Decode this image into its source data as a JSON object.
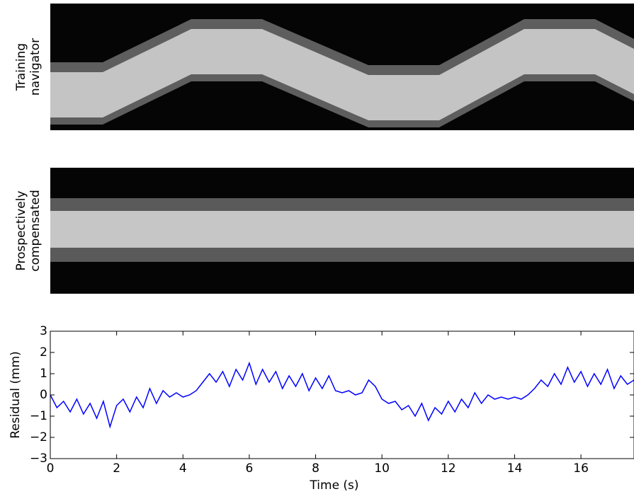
{
  "chart_data": [
    {
      "type": "image",
      "ylabel": [
        "Training",
        "navigator"
      ]
    },
    {
      "type": "image",
      "ylabel": [
        "Prospectively",
        "compensated"
      ]
    },
    {
      "type": "line",
      "xlabel": "Time (s)",
      "ylabel": "Residual (mm)",
      "xlim": [
        0,
        17.6
      ],
      "ylim": [
        -3,
        3
      ],
      "xticks": [
        0,
        2,
        4,
        6,
        8,
        10,
        12,
        14,
        16
      ],
      "yticks": [
        {
          "value": -3,
          "label": "−3"
        },
        {
          "value": -2,
          "label": "−2"
        },
        {
          "value": -1,
          "label": "−1"
        },
        0,
        1,
        2,
        3
      ],
      "series": [
        {
          "color": "#0000ff",
          "x": [
            0,
            0.2,
            0.4,
            0.6,
            0.8,
            1.0,
            1.2,
            1.4,
            1.6,
            1.8,
            2.0,
            2.2,
            2.4,
            2.6,
            2.8,
            3.0,
            3.2,
            3.4,
            3.6,
            3.8,
            4.0,
            4.2,
            4.4,
            4.6,
            4.8,
            5.0,
            5.2,
            5.4,
            5.6,
            5.8,
            6.0,
            6.2,
            6.4,
            6.6,
            6.8,
            7.0,
            7.2,
            7.4,
            7.6,
            7.8,
            8.0,
            8.2,
            8.4,
            8.6,
            8.8,
            9.0,
            9.2,
            9.4,
            9.6,
            9.8,
            10.0,
            10.2,
            10.4,
            10.6,
            10.8,
            11.0,
            11.2,
            11.4,
            11.6,
            11.8,
            12.0,
            12.2,
            12.4,
            12.6,
            12.8,
            13.0,
            13.2,
            13.4,
            13.6,
            13.8,
            14.0,
            14.2,
            14.4,
            14.6,
            14.8,
            15.0,
            15.2,
            15.4,
            15.6,
            15.8,
            16.0,
            16.2,
            16.4,
            16.6,
            16.8,
            17.0,
            17.2,
            17.4,
            17.6
          ],
          "values": [
            0.0,
            -0.6,
            -0.3,
            -0.8,
            -0.2,
            -0.9,
            -0.4,
            -1.1,
            -0.3,
            -1.5,
            -0.5,
            -0.2,
            -0.8,
            -0.1,
            -0.6,
            0.3,
            -0.4,
            0.2,
            -0.1,
            0.1,
            -0.1,
            0.0,
            0.2,
            0.6,
            1.0,
            0.6,
            1.1,
            0.4,
            1.2,
            0.7,
            1.5,
            0.5,
            1.2,
            0.6,
            1.1,
            0.3,
            0.9,
            0.4,
            1.0,
            0.2,
            0.8,
            0.3,
            0.9,
            0.2,
            0.1,
            0.2,
            0.0,
            0.1,
            0.7,
            0.4,
            -0.2,
            -0.4,
            -0.3,
            -0.7,
            -0.5,
            -1.0,
            -0.4,
            -1.2,
            -0.6,
            -0.9,
            -0.3,
            -0.8,
            -0.2,
            -0.6,
            0.1,
            -0.4,
            0.0,
            -0.2,
            -0.1,
            -0.2,
            -0.1,
            -0.2,
            0.0,
            0.3,
            0.7,
            0.4,
            1.0,
            0.5,
            1.3,
            0.6,
            1.1,
            0.4,
            1.0,
            0.5,
            1.2,
            0.3,
            0.9,
            0.5,
            0.7
          ]
        }
      ]
    }
  ]
}
